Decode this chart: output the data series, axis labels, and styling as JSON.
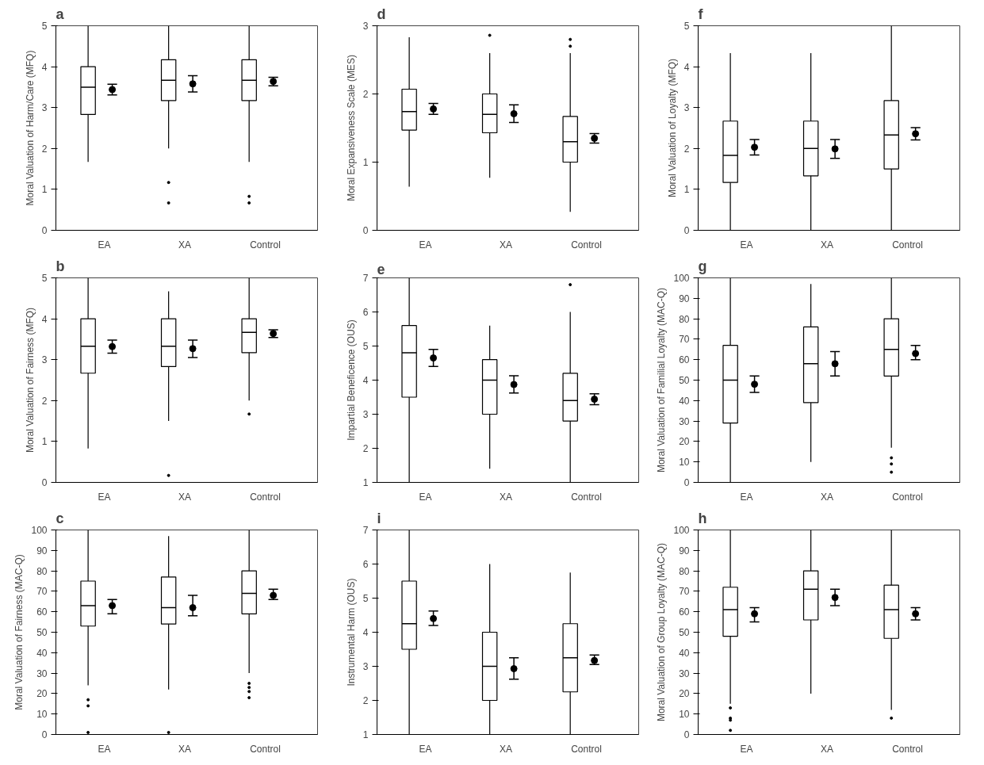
{
  "chart_data": [
    {
      "type": "box",
      "title": "a",
      "ylabel": "Moral Valuation of Harm/Care (MFQ)",
      "categories": [
        "EA",
        "XA",
        "Control"
      ],
      "ylim": [
        0,
        5
      ],
      "yticks": [
        0,
        1,
        2,
        3,
        4,
        5
      ],
      "grid": false,
      "boxes": [
        {
          "low": 1.67,
          "q1": 2.83,
          "median": 3.5,
          "q3": 4.0,
          "high": 5
        },
        {
          "low": 2.0,
          "q1": 3.17,
          "median": 3.67,
          "q3": 4.17,
          "high": 5,
          "outliers": [
            1.17,
            0.67
          ]
        },
        {
          "low": 1.67,
          "q1": 3.17,
          "median": 3.67,
          "q3": 4.17,
          "high": 5,
          "outliers": [
            0.83,
            0.67
          ]
        }
      ],
      "series": [
        {
          "type": "scatter",
          "color": "#000000",
          "values": [
            3.44,
            3.58,
            3.64
          ],
          "errors": [
            [
              3.31,
              3.57
            ],
            [
              3.38,
              3.78
            ],
            [
              3.53,
              3.74
            ]
          ]
        }
      ]
    },
    {
      "type": "box",
      "title": "d",
      "ylabel": "Moral Expansiveness Scale (MES)",
      "categories": [
        "EA",
        "XA",
        "Control"
      ],
      "ylim": [
        0,
        3
      ],
      "yticks": [
        0,
        1,
        2,
        3
      ],
      "grid": false,
      "boxes": [
        {
          "low": 0.64,
          "q1": 1.47,
          "median": 1.74,
          "q3": 2.07,
          "high": 2.83
        },
        {
          "low": 0.77,
          "q1": 1.43,
          "median": 1.7,
          "q3": 2.0,
          "high": 2.6,
          "outliers": [
            2.86
          ]
        },
        {
          "low": 0.27,
          "q1": 1.0,
          "median": 1.3,
          "q3": 1.67,
          "high": 2.6,
          "outliers": [
            2.8,
            2.7
          ]
        }
      ],
      "series": [
        {
          "type": "scatter",
          "color": "#000000",
          "values": [
            1.78,
            1.71,
            1.35
          ],
          "errors": [
            [
              1.7,
              1.86
            ],
            [
              1.58,
              1.84
            ],
            [
              1.28,
              1.42
            ]
          ]
        }
      ]
    },
    {
      "type": "box",
      "title": "f",
      "ylabel": "Moral Valuation of Loyalty (MFQ)",
      "categories": [
        "EA",
        "XA",
        "Control"
      ],
      "ylim": [
        0,
        5
      ],
      "yticks": [
        0,
        1,
        2,
        3,
        4,
        5
      ],
      "grid": false,
      "boxes": [
        {
          "low": 0,
          "q1": 1.17,
          "median": 1.83,
          "q3": 2.67,
          "high": 4.33
        },
        {
          "low": 0,
          "q1": 1.33,
          "median": 2.0,
          "q3": 2.67,
          "high": 4.33
        },
        {
          "low": 0,
          "q1": 1.5,
          "median": 2.33,
          "q3": 3.17,
          "high": 5
        }
      ],
      "series": [
        {
          "type": "scatter",
          "color": "#000000",
          "values": [
            2.03,
            1.99,
            2.36
          ],
          "errors": [
            [
              1.84,
              2.22
            ],
            [
              1.76,
              2.22
            ],
            [
              2.21,
              2.51
            ]
          ]
        }
      ]
    },
    {
      "type": "box",
      "title": "b",
      "ylabel": "Moral Valuation of Fairness (MFQ)",
      "categories": [
        "EA",
        "XA",
        "Control"
      ],
      "ylim": [
        0,
        5
      ],
      "yticks": [
        0,
        1,
        2,
        3,
        4,
        5
      ],
      "grid": false,
      "boxes": [
        {
          "low": 0.83,
          "q1": 2.67,
          "median": 3.33,
          "q3": 4.0,
          "high": 5
        },
        {
          "low": 1.5,
          "q1": 2.83,
          "median": 3.33,
          "q3": 4.0,
          "high": 4.67,
          "outliers": [
            0.17
          ]
        },
        {
          "low": 2.0,
          "q1": 3.17,
          "median": 3.67,
          "q3": 4.0,
          "high": 5,
          "outliers": [
            1.67
          ]
        }
      ],
      "series": [
        {
          "type": "scatter",
          "color": "#000000",
          "values": [
            3.32,
            3.27,
            3.64
          ],
          "errors": [
            [
              3.16,
              3.48
            ],
            [
              3.05,
              3.48
            ],
            [
              3.54,
              3.73
            ]
          ]
        }
      ]
    },
    {
      "type": "box",
      "title": "e",
      "ylabel": "Impartial Beneficence (OUS)",
      "categories": [
        "EA",
        "XA",
        "Control"
      ],
      "ylim": [
        1,
        7
      ],
      "yticks": [
        1,
        2,
        3,
        4,
        5,
        6,
        7
      ],
      "grid": false,
      "boxes": [
        {
          "low": 1,
          "q1": 3.5,
          "median": 4.8,
          "q3": 5.6,
          "high": 7
        },
        {
          "low": 1.4,
          "q1": 3.0,
          "median": 4.0,
          "q3": 4.6,
          "high": 5.6
        },
        {
          "low": 1.0,
          "q1": 2.8,
          "median": 3.4,
          "q3": 4.2,
          "high": 6.0,
          "outliers": [
            6.8
          ]
        }
      ],
      "series": [
        {
          "type": "scatter",
          "color": "#000000",
          "values": [
            4.65,
            3.87,
            3.44
          ],
          "errors": [
            [
              4.4,
              4.9
            ],
            [
              3.62,
              4.13
            ],
            [
              3.28,
              3.6
            ]
          ]
        }
      ]
    },
    {
      "type": "box",
      "title": "g",
      "ylabel": "Moral Valuation of Familial Loyalty (MAC-Q)",
      "categories": [
        "EA",
        "XA",
        "Control"
      ],
      "ylim": [
        0,
        100
      ],
      "yticks": [
        0,
        10,
        20,
        30,
        40,
        50,
        60,
        70,
        80,
        90,
        100
      ],
      "grid": false,
      "boxes": [
        {
          "low": 0,
          "q1": 29,
          "median": 50,
          "q3": 67,
          "high": 100
        },
        {
          "low": 10,
          "q1": 39,
          "median": 58,
          "q3": 76,
          "high": 97
        },
        {
          "low": 17,
          "q1": 52,
          "median": 65,
          "q3": 80,
          "high": 100,
          "outliers": [
            12,
            9,
            5
          ]
        }
      ],
      "series": [
        {
          "type": "scatter",
          "color": "#000000",
          "values": [
            48,
            58,
            63
          ],
          "errors": [
            [
              44,
              52
            ],
            [
              52,
              64
            ],
            [
              60,
              67
            ]
          ]
        }
      ]
    },
    {
      "type": "box",
      "title": "c",
      "ylabel": "Moral Valuation of Fairness (MAC-Q)",
      "categories": [
        "EA",
        "XA",
        "Control"
      ],
      "ylim": [
        0,
        100
      ],
      "yticks": [
        0,
        10,
        20,
        30,
        40,
        50,
        60,
        70,
        80,
        90,
        100
      ],
      "grid": false,
      "boxes": [
        {
          "low": 24,
          "q1": 53,
          "median": 63,
          "q3": 75,
          "high": 100,
          "outliers": [
            17,
            14,
            1
          ]
        },
        {
          "low": 22,
          "q1": 54,
          "median": 62,
          "q3": 77,
          "high": 97,
          "outliers": [
            1
          ]
        },
        {
          "low": 30,
          "q1": 59,
          "median": 69,
          "q3": 80,
          "high": 100,
          "outliers": [
            25,
            23,
            21,
            18
          ]
        }
      ],
      "series": [
        {
          "type": "scatter",
          "color": "#000000",
          "values": [
            63,
            62,
            68
          ],
          "errors": [
            [
              59,
              66
            ],
            [
              58,
              68
            ],
            [
              66,
              71
            ]
          ]
        }
      ]
    },
    {
      "type": "box",
      "title": "i",
      "ylabel": "Instrumental Harm (OUS)",
      "categories": [
        "EA",
        "XA",
        "Control"
      ],
      "ylim": [
        1,
        7
      ],
      "yticks": [
        1,
        2,
        3,
        4,
        5,
        6,
        7
      ],
      "grid": false,
      "boxes": [
        {
          "low": 1,
          "q1": 3.5,
          "median": 4.25,
          "q3": 5.5,
          "high": 7
        },
        {
          "low": 1,
          "q1": 2.0,
          "median": 3.0,
          "q3": 4.0,
          "high": 6.0
        },
        {
          "low": 1,
          "q1": 2.25,
          "median": 3.25,
          "q3": 4.25,
          "high": 5.75
        }
      ],
      "series": [
        {
          "type": "scatter",
          "color": "#000000",
          "values": [
            4.4,
            2.93,
            3.17
          ],
          "errors": [
            [
              4.2,
              4.62
            ],
            [
              2.62,
              3.25
            ],
            [
              3.05,
              3.33
            ]
          ]
        }
      ]
    },
    {
      "type": "box",
      "title": "h",
      "ylabel": "Moral Valuation of Group Loyalty (MAC-Q)",
      "categories": [
        "EA",
        "XA",
        "Control"
      ],
      "ylim": [
        0,
        100
      ],
      "yticks": [
        0,
        10,
        20,
        30,
        40,
        50,
        60,
        70,
        80,
        90,
        100
      ],
      "grid": false,
      "boxes": [
        {
          "low": 15,
          "q1": 48,
          "median": 61,
          "q3": 72,
          "high": 100,
          "outliers": [
            13,
            8,
            7,
            2
          ]
        },
        {
          "low": 20,
          "q1": 56,
          "median": 71,
          "q3": 80,
          "high": 100
        },
        {
          "low": 12,
          "q1": 47,
          "median": 61,
          "q3": 73,
          "high": 100,
          "outliers": [
            8
          ]
        }
      ],
      "series": [
        {
          "type": "scatter",
          "color": "#000000",
          "values": [
            59,
            67,
            59
          ],
          "errors": [
            [
              55,
              62
            ],
            [
              63,
              71
            ],
            [
              56,
              62
            ]
          ]
        }
      ]
    }
  ]
}
